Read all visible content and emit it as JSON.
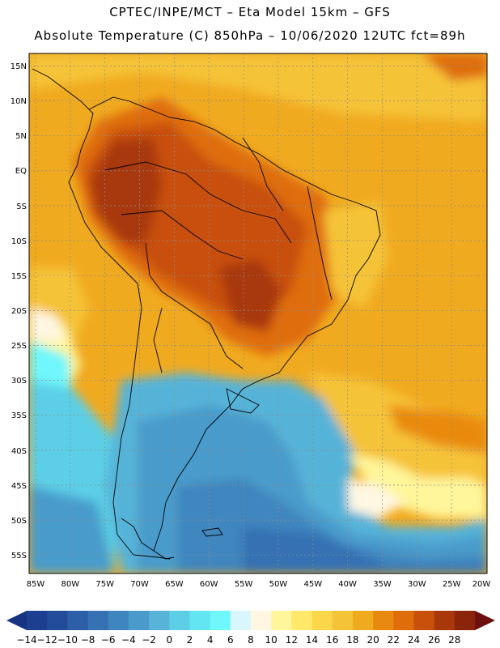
{
  "header": {
    "title_line1": "CPTEC/INPE/MCT –   Eta Model 15km – GFS",
    "title_line2": "Absolute Temperature (C) 850hPa – 10/06/2020 12UTC fct=89h"
  },
  "map": {
    "lat_labels": [
      "15N",
      "10N",
      "5N",
      "EQ",
      "5S",
      "10S",
      "15S",
      "20S",
      "25S",
      "30S",
      "35S",
      "40S",
      "45S",
      "50S",
      "55S"
    ],
    "lon_labels": [
      "85W",
      "80W",
      "75W",
      "70W",
      "65W",
      "60W",
      "55W",
      "50W",
      "45W",
      "40W",
      "35W",
      "30W",
      "25W",
      "20W"
    ]
  },
  "colorbar": {
    "labels": [
      "-14",
      "-12",
      "-10",
      "-8",
      "-6",
      "-4",
      "-2",
      "0",
      "2",
      "4",
      "6",
      "8",
      "10",
      "12",
      "14",
      "16",
      "18",
      "20",
      "22",
      "24",
      "26",
      "28"
    ],
    "colors": [
      "#1c3f8f",
      "#234d9a",
      "#2d5fa8",
      "#3571b3",
      "#3f86bf",
      "#4a9bcb",
      "#57b3d8",
      "#5ccfe6",
      "#62e6f2",
      "#6ff7fb",
      "#d8f6fb",
      "#fff7e2",
      "#fff59a",
      "#ffe86a",
      "#fbd648",
      "#f5c337",
      "#f0aa20",
      "#e98a10",
      "#df6d0a",
      "#c8500a",
      "#a8380a",
      "#8a250c"
    ],
    "under_color": "#173482",
    "over_color": "#6e1010"
  }
}
